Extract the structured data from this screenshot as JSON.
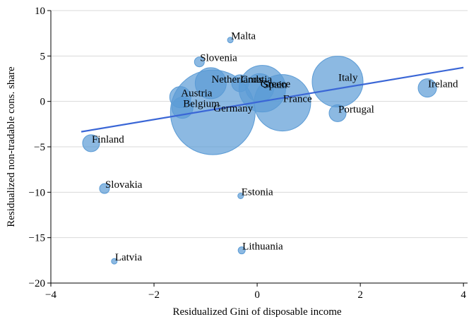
{
  "chart_data": {
    "type": "scatter",
    "xlabel": "Residualized Gini of disposable income",
    "ylabel": "Residualized non-tradable cons. share",
    "xlim": [
      -4,
      4.08
    ],
    "ylim": [
      -20,
      10
    ],
    "xticks": [
      {
        "value": -4,
        "label": "−4"
      },
      {
        "value": -2,
        "label": "−2"
      },
      0,
      2,
      4
    ],
    "yticks": [
      {
        "value": -20,
        "label": "−20"
      },
      {
        "value": -15,
        "label": "−15"
      },
      {
        "value": -10,
        "label": "−10"
      },
      {
        "value": -5,
        "label": "−5"
      },
      0,
      5,
      10
    ],
    "grid": true,
    "points": {
      "color": "#5b9bd5",
      "labels": [
        "Malta",
        "Slovenia",
        "Netherlands",
        "Croatia",
        "Greece",
        "Spain",
        "Italy",
        "Ireland",
        "Austria",
        "Belgium",
        "Germany",
        "France",
        "Portugal",
        "Finland",
        "Slovakia",
        "Estonia",
        "Lithuania",
        "Latvia"
      ],
      "x": [
        -0.52,
        -1.12,
        -0.9,
        -0.33,
        0.05,
        0.1,
        1.56,
        3.3,
        -1.49,
        -1.45,
        -0.86,
        0.49,
        1.56,
        -3.22,
        -2.96,
        -0.32,
        -0.3,
        -2.77
      ],
      "values": [
        6.76,
        4.35,
        2.0,
        2.0,
        1.5,
        1.4,
        2.18,
        1.48,
        0.47,
        -0.7,
        -1.2,
        -0.15,
        -1.3,
        -4.6,
        -9.6,
        -10.4,
        -16.4,
        -17.6
      ],
      "sizes": [
        4,
        7,
        22,
        12,
        20,
        33,
        36,
        13,
        15,
        15,
        60,
        40,
        12,
        12,
        7,
        4,
        5,
        4
      ]
    },
    "fit_line": {
      "color": "#3a66d6",
      "x": [
        -3.41,
        4.0
      ],
      "values": [
        -3.34,
        3.73
      ]
    }
  }
}
